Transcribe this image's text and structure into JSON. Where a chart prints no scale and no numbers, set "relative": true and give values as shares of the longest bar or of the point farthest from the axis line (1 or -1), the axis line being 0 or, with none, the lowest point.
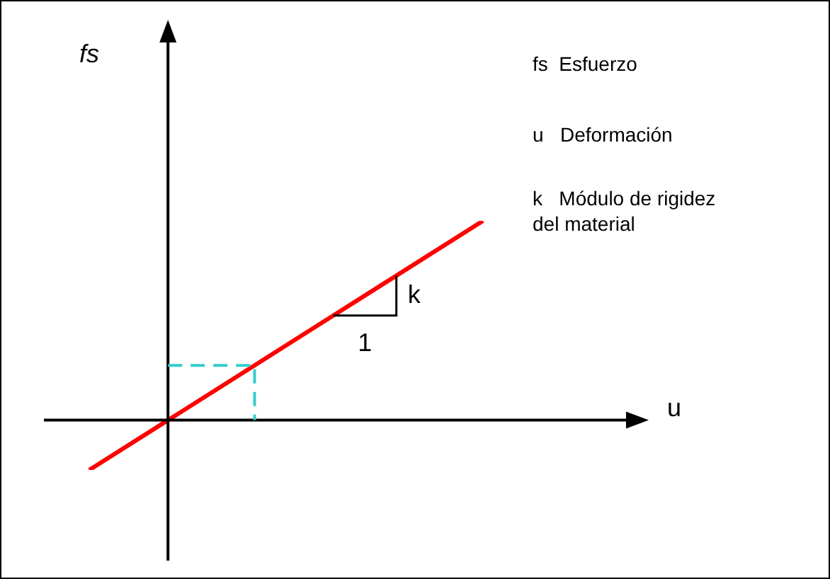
{
  "chart_data": {
    "type": "line",
    "relative": true,
    "categories": [
      null,
      null,
      null,
      null,
      null,
      null
    ],
    "series": [
      {
        "color": "#ff0000",
        "values": [
          -0.25,
          0,
          0.25,
          0.5,
          0.75,
          1
        ]
      }
    ],
    "marker": "none",
    "legend": false,
    "annotations": [
      "fs",
      "u",
      "fs  Esfuerzo",
      "u   Deformación",
      "k   Módulo de rigidez del material",
      "k",
      "1"
    ]
  }
}
